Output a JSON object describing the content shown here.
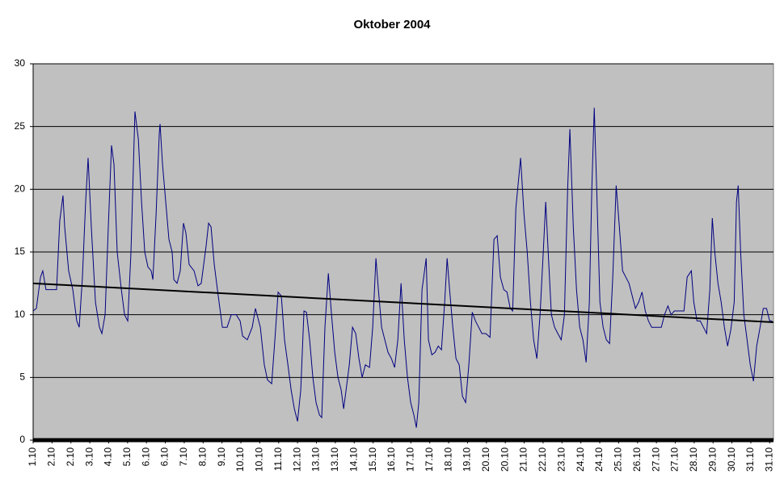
{
  "chart_data": {
    "type": "line",
    "title": "Oktober 2004",
    "xlim": [
      0,
      39.2
    ],
    "xticks": [
      {
        "value": 0,
        "label": "1.10"
      },
      {
        "value": 1,
        "label": "2.10"
      },
      {
        "value": 2,
        "label": "2.10"
      },
      {
        "value": 3,
        "label": "3.10"
      },
      {
        "value": 4,
        "label": "4.10"
      },
      {
        "value": 5,
        "label": "5.10"
      },
      {
        "value": 6,
        "label": "6.10"
      },
      {
        "value": 7,
        "label": "6.10"
      },
      {
        "value": 8,
        "label": "7.10"
      },
      {
        "value": 9,
        "label": "8.10"
      },
      {
        "value": 10,
        "label": "9.10"
      },
      {
        "value": 11,
        "label": "10.10"
      },
      {
        "value": 12,
        "label": "10.10"
      },
      {
        "value": 13,
        "label": "11.10"
      },
      {
        "value": 14,
        "label": "12.10"
      },
      {
        "value": 15,
        "label": "13.10"
      },
      {
        "value": 16,
        "label": "13.10"
      },
      {
        "value": 17,
        "label": "14.10"
      },
      {
        "value": 18,
        "label": "15.10"
      },
      {
        "value": 19,
        "label": "16.10"
      },
      {
        "value": 20,
        "label": "17.10"
      },
      {
        "value": 21,
        "label": "17.10"
      },
      {
        "value": 22,
        "label": "18.10"
      },
      {
        "value": 23,
        "label": "19.10"
      },
      {
        "value": 24,
        "label": "20.10"
      },
      {
        "value": 25,
        "label": "20.10"
      },
      {
        "value": 26,
        "label": "21.10"
      },
      {
        "value": 27,
        "label": "22.10"
      },
      {
        "value": 28,
        "label": "23.10"
      },
      {
        "value": 29,
        "label": "24.10"
      },
      {
        "value": 30,
        "label": "24.10"
      },
      {
        "value": 31,
        "label": "25.10"
      },
      {
        "value": 32,
        "label": "26.10"
      },
      {
        "value": 33,
        "label": "27.10"
      },
      {
        "value": 34,
        "label": "27.10"
      },
      {
        "value": 35,
        "label": "28.10"
      },
      {
        "value": 36,
        "label": "29.10"
      },
      {
        "value": 37,
        "label": "30.10"
      },
      {
        "value": 38,
        "label": "31.10"
      },
      {
        "value": 39,
        "label": "31.10"
      }
    ],
    "ylim": [
      0,
      30
    ],
    "yticks": [
      0,
      5,
      10,
      15,
      20,
      25,
      30
    ],
    "grid": true,
    "background": "#c0c0c0",
    "series": [
      {
        "color": "#000080",
        "x": [
          0,
          0.17,
          0.39,
          0.51,
          0.68,
          1.03,
          1.24,
          1.41,
          1.58,
          1.67,
          1.88,
          2.1,
          2.31,
          2.44,
          2.61,
          2.78,
          2.91,
          3.08,
          3.3,
          3.51,
          3.64,
          3.81,
          3.98,
          4.15,
          4.28,
          4.45,
          4.67,
          4.84,
          5.01,
          5.18,
          5.39,
          5.57,
          5.74,
          5.91,
          6.08,
          6.25,
          6.34,
          6.51,
          6.68,
          6.72,
          6.85,
          7.02,
          7.19,
          7.36,
          7.45,
          7.62,
          7.79,
          7.96,
          8.09,
          8.26,
          8.52,
          8.73,
          8.9,
          9.16,
          9.29,
          9.42,
          9.59,
          9.8,
          10.02,
          10.27,
          10.49,
          10.75,
          10.96,
          11.09,
          11.34,
          11.6,
          11.77,
          12.03,
          12.24,
          12.41,
          12.63,
          12.8,
          12.97,
          13.14,
          13.31,
          13.49,
          13.66,
          13.83,
          14.0,
          14.17,
          14.34,
          14.47,
          14.64,
          14.81,
          14.98,
          15.16,
          15.28,
          15.45,
          15.63,
          15.8,
          15.97,
          16.14,
          16.31,
          16.44,
          16.57,
          16.74,
          16.91,
          17.08,
          17.25,
          17.42,
          17.59,
          17.81,
          17.98,
          18.15,
          18.28,
          18.45,
          18.62,
          18.79,
          18.97,
          19.14,
          19.31,
          19.48,
          19.65,
          19.82,
          19.99,
          20.16,
          20.29,
          20.42,
          20.59,
          20.68,
          20.81,
          20.93,
          21.11,
          21.28,
          21.45,
          21.62,
          21.79,
          21.92,
          22.05,
          22.22,
          22.39,
          22.56,
          22.73,
          22.9,
          23.07,
          23.25,
          23.42,
          23.59,
          23.76,
          23.97,
          24.19,
          24.4,
          24.57,
          24.74,
          24.92,
          25.09,
          25.26,
          25.39,
          25.56,
          25.81,
          25.99,
          26.16,
          26.33,
          26.5,
          26.67,
          26.84,
          27.01,
          27.14,
          27.27,
          27.44,
          27.61,
          27.78,
          27.96,
          28.13,
          28.3,
          28.42,
          28.6,
          28.77,
          28.94,
          29.11,
          29.28,
          29.45,
          29.58,
          29.71,
          29.84,
          30.01,
          30.18,
          30.35,
          30.52,
          30.69,
          30.87,
          31.04,
          31.21,
          31.38,
          31.55,
          31.72,
          31.89,
          32.06,
          32.24,
          32.41,
          32.58,
          32.75,
          33.01,
          33.26,
          33.43,
          33.61,
          33.78,
          33.95,
          34.21,
          34.46,
          34.63,
          34.85,
          34.98,
          35.15,
          35.32,
          35.49,
          35.66,
          35.83,
          35.96,
          36.09,
          36.26,
          36.43,
          36.6,
          36.77,
          36.94,
          37.12,
          37.24,
          37.33,
          37.46,
          37.63,
          37.8,
          37.97,
          38.14,
          38.31,
          38.49,
          38.66,
          38.83,
          39.0,
          39.13
        ],
        "values": [
          10.3,
          10.5,
          13,
          13.5,
          12,
          12,
          12,
          17.5,
          19.5,
          17,
          13.5,
          12,
          9.5,
          9,
          13,
          19,
          22.5,
          17,
          11,
          9,
          8.5,
          10,
          17,
          23.5,
          22,
          15,
          12,
          10,
          9.5,
          15,
          26.2,
          24,
          19,
          15,
          13.8,
          13.5,
          12.8,
          18,
          24.5,
          25.2,
          22,
          19,
          16,
          15,
          12.8,
          12.5,
          13.5,
          17.3,
          16.5,
          14,
          13.5,
          12.3,
          12.5,
          15.5,
          17.3,
          17,
          14,
          11.5,
          9,
          9,
          10,
          10,
          9.5,
          8.3,
          8,
          9,
          10.5,
          9,
          6,
          4.8,
          4.5,
          8,
          11.8,
          11.5,
          8,
          6,
          4,
          2.5,
          1.5,
          4,
          10.3,
          10.2,
          8,
          5,
          3,
          2,
          1.8,
          9,
          13.3,
          10,
          7,
          5,
          4,
          2.5,
          4,
          6,
          9,
          8.5,
          6.5,
          5,
          6,
          5.8,
          9,
          14.5,
          12,
          9,
          8,
          7,
          6.5,
          5.8,
          8,
          12.5,
          8,
          5,
          3,
          2,
          1,
          3,
          12,
          13,
          14.5,
          8,
          6.8,
          7,
          7.5,
          7.2,
          11,
          14.5,
          12,
          9,
          6.5,
          6,
          3.5,
          3,
          6,
          10.2,
          9.5,
          9,
          8.5,
          8.5,
          8.2,
          16,
          16.3,
          13,
          12,
          11.8,
          10.5,
          10.3,
          18.5,
          22.5,
          18,
          15,
          11,
          8,
          6.5,
          10,
          15,
          19,
          15,
          10,
          9,
          8.5,
          8,
          10,
          20,
          24.8,
          17,
          12,
          9,
          8,
          6.2,
          11,
          20,
          26.5,
          20,
          11,
          9,
          8,
          7.7,
          13,
          20.3,
          17,
          13.5,
          13,
          12.5,
          11.5,
          10.5,
          11,
          11.8,
          10.3,
          9.5,
          9,
          9,
          9,
          10,
          10.7,
          10,
          10.3,
          10.3,
          10.3,
          13,
          13.5,
          11,
          9.5,
          9.5,
          9,
          8.5,
          12,
          17.7,
          15,
          12.5,
          11,
          9,
          7.5,
          8.8,
          11,
          19,
          20.3,
          15,
          10,
          8,
          6,
          4.7,
          7.5,
          9,
          10.5,
          10.5,
          9.5,
          9.5
        ]
      },
      {
        "color": "#000000",
        "x": [
          0,
          39.2
        ],
        "values": [
          12.5,
          9.4
        ]
      }
    ]
  }
}
